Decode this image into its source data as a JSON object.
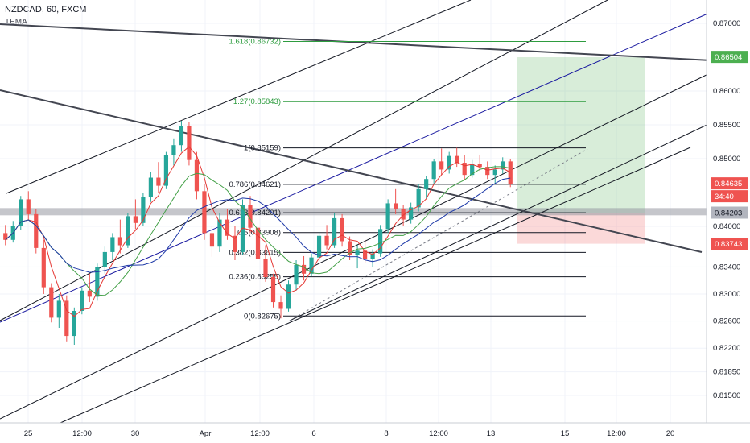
{
  "header": {
    "symbol": "NZDCAD, 60, FXCM",
    "indicator": "TEMA"
  },
  "price_axis": {
    "ticks": [
      "0.87000",
      "0.86000",
      "0.85500",
      "0.85000",
      "0.84000",
      "0.83400",
      "0.83000",
      "0.82600",
      "0.82200",
      "0.81850",
      "0.81500"
    ]
  },
  "time_axis": {
    "ticks": [
      "25",
      "12:00",
      "30",
      "Apr",
      "12:00",
      "6",
      "8",
      "12:00",
      "13",
      "15",
      "12:00",
      "20"
    ]
  },
  "price_tags": [
    {
      "label": "0.86504",
      "color": "#4caf50",
      "textColor": "#ffffff"
    },
    {
      "label": "0.84635",
      "color": "#ef5350",
      "textColor": "#ffffff"
    },
    {
      "label": "34:40",
      "color": "#ef5350",
      "textColor": "#ffffff"
    },
    {
      "label": "0.84203",
      "color": "#b2b5be",
      "textColor": "#131722"
    },
    {
      "label": "0.83743",
      "color": "#ef5350",
      "textColor": "#ffffff"
    }
  ],
  "fib_levels": [
    {
      "label": "1.618(0.86732)",
      "color": "#2e9c3f"
    },
    {
      "label": "1.27(0.85843)",
      "color": "#2e9c3f"
    },
    {
      "label": "1(0.85159)",
      "color": "#131722"
    },
    {
      "label": "0.786(0.84621)",
      "color": "#131722"
    },
    {
      "label": "0.618(0.84201)",
      "color": "#131722"
    },
    {
      "label": "0.5(0.83908)",
      "color": "#131722"
    },
    {
      "label": "0.382(0.83615)",
      "color": "#131722"
    },
    {
      "label": "0.236(0.83255)",
      "color": "#131722"
    },
    {
      "label": "0(0.82675)",
      "color": "#131722"
    }
  ],
  "chart_data": {
    "type": "candlestick",
    "symbol": "NZDCAD",
    "timeframe": "60",
    "ylim": [
      0.8125,
      0.8735
    ],
    "up_color": "#26a69a",
    "down_color": "#ef5350",
    "candles": [
      [
        0.839,
        0.8402,
        0.8372,
        0.838
      ],
      [
        0.838,
        0.8408,
        0.8376,
        0.84
      ],
      [
        0.84,
        0.8445,
        0.8395,
        0.844
      ],
      [
        0.844,
        0.8452,
        0.841,
        0.8418
      ],
      [
        0.8418,
        0.8426,
        0.836,
        0.8368
      ],
      [
        0.8368,
        0.838,
        0.83,
        0.831
      ],
      [
        0.831,
        0.8316,
        0.8258,
        0.8265
      ],
      [
        0.8265,
        0.83,
        0.825,
        0.829
      ],
      [
        0.829,
        0.8298,
        0.823,
        0.8238
      ],
      [
        0.8238,
        0.828,
        0.8225,
        0.8275
      ],
      [
        0.8275,
        0.831,
        0.827,
        0.8305
      ],
      [
        0.8305,
        0.833,
        0.8288,
        0.8296
      ],
      [
        0.8296,
        0.8345,
        0.829,
        0.834
      ],
      [
        0.834,
        0.837,
        0.833,
        0.8362
      ],
      [
        0.8362,
        0.839,
        0.835,
        0.8384
      ],
      [
        0.8384,
        0.841,
        0.836,
        0.8372
      ],
      [
        0.8372,
        0.842,
        0.8368,
        0.8415
      ],
      [
        0.8415,
        0.844,
        0.8396,
        0.8405
      ],
      [
        0.8405,
        0.845,
        0.84,
        0.8444
      ],
      [
        0.8444,
        0.848,
        0.8436,
        0.8472
      ],
      [
        0.8472,
        0.8495,
        0.845,
        0.846
      ],
      [
        0.846,
        0.851,
        0.8455,
        0.8505
      ],
      [
        0.8505,
        0.853,
        0.849,
        0.852
      ],
      [
        0.852,
        0.8556,
        0.851,
        0.8548
      ],
      [
        0.8548,
        0.8554,
        0.849,
        0.8498
      ],
      [
        0.8498,
        0.851,
        0.844,
        0.8452
      ],
      [
        0.8452,
        0.8462,
        0.838,
        0.839
      ],
      [
        0.839,
        0.84,
        0.8355,
        0.837
      ],
      [
        0.837,
        0.842,
        0.8362,
        0.841
      ],
      [
        0.841,
        0.8425,
        0.838,
        0.8386
      ],
      [
        0.8386,
        0.84,
        0.835,
        0.8362
      ],
      [
        0.8362,
        0.844,
        0.8358,
        0.8432
      ],
      [
        0.8432,
        0.8445,
        0.839,
        0.8398
      ],
      [
        0.8398,
        0.8405,
        0.8345,
        0.8352
      ],
      [
        0.8352,
        0.8372,
        0.8318,
        0.8325
      ],
      [
        0.8325,
        0.833,
        0.828,
        0.8288
      ],
      [
        0.8288,
        0.8298,
        0.8264,
        0.8278
      ],
      [
        0.8278,
        0.832,
        0.8274,
        0.8314
      ],
      [
        0.8314,
        0.835,
        0.8305,
        0.8343
      ],
      [
        0.8343,
        0.8356,
        0.832,
        0.833
      ],
      [
        0.833,
        0.836,
        0.8326,
        0.8354
      ],
      [
        0.8354,
        0.8392,
        0.8348,
        0.8386
      ],
      [
        0.8386,
        0.8402,
        0.8366,
        0.8372
      ],
      [
        0.8372,
        0.842,
        0.8368,
        0.8412
      ],
      [
        0.8412,
        0.8418,
        0.837,
        0.8378
      ],
      [
        0.8378,
        0.8385,
        0.835,
        0.8358
      ],
      [
        0.8358,
        0.8372,
        0.8338,
        0.8364
      ],
      [
        0.8364,
        0.838,
        0.8346,
        0.8352
      ],
      [
        0.8352,
        0.8366,
        0.834,
        0.836
      ],
      [
        0.836,
        0.8402,
        0.8355,
        0.8396
      ],
      [
        0.8396,
        0.844,
        0.839,
        0.8434
      ],
      [
        0.8434,
        0.8455,
        0.8418,
        0.8426
      ],
      [
        0.8426,
        0.8432,
        0.84,
        0.841
      ],
      [
        0.841,
        0.8435,
        0.8404,
        0.8428
      ],
      [
        0.8428,
        0.8462,
        0.8422,
        0.8455
      ],
      [
        0.8455,
        0.8475,
        0.844,
        0.847
      ],
      [
        0.847,
        0.85,
        0.8462,
        0.8496
      ],
      [
        0.8496,
        0.8515,
        0.8476,
        0.8484
      ],
      [
        0.8484,
        0.851,
        0.8478,
        0.8504
      ],
      [
        0.8504,
        0.8516,
        0.8488,
        0.8494
      ],
      [
        0.8494,
        0.8505,
        0.8468,
        0.8476
      ],
      [
        0.8476,
        0.8498,
        0.8472,
        0.8492
      ],
      [
        0.8492,
        0.8506,
        0.8482,
        0.8488
      ],
      [
        0.8488,
        0.8496,
        0.847,
        0.8476
      ],
      [
        0.8476,
        0.849,
        0.8462,
        0.8484
      ],
      [
        0.8484,
        0.8502,
        0.8478,
        0.8496
      ],
      [
        0.8496,
        0.8499,
        0.8458,
        0.8463
      ]
    ]
  }
}
